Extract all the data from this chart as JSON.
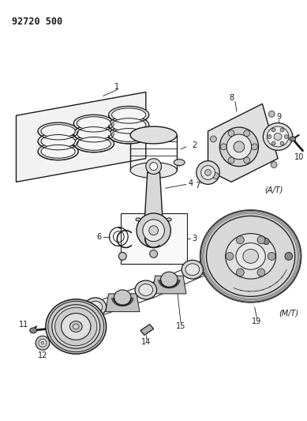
{
  "title": "92720 500",
  "bg_color": "#ffffff",
  "fig_width": 3.89,
  "fig_height": 5.33,
  "dpi": 100,
  "line_color": "#1a1a1a",
  "fill_light": "#f0f0f0",
  "fill_mid": "#d8d8d8",
  "fill_dark": "#b0b0b0"
}
